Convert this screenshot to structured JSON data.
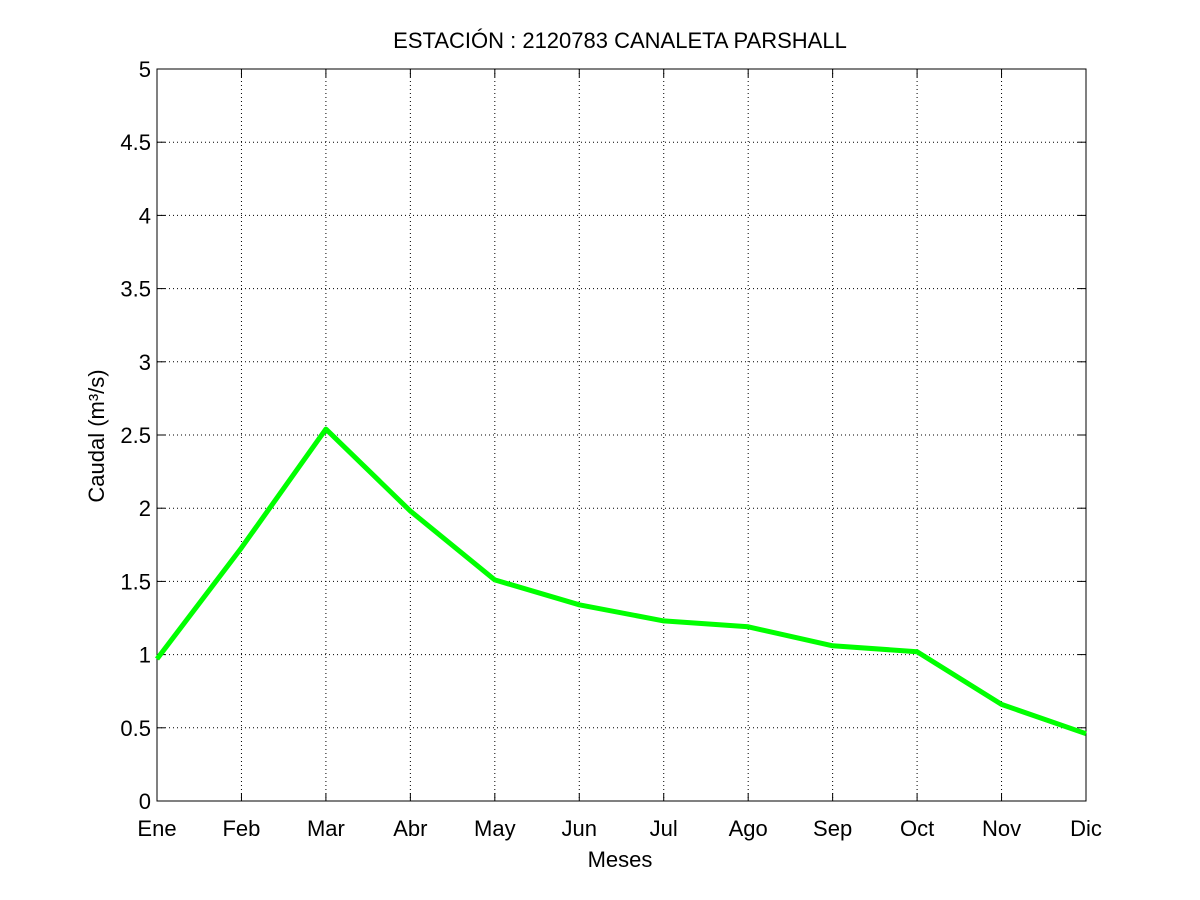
{
  "chart_data": {
    "type": "line",
    "title": "ESTACIÓN :  2120783  CANALETA PARSHALL",
    "xlabel": "Meses",
    "ylabel": "Caudal (m³/s)",
    "categories": [
      "Ene",
      "Feb",
      "Mar",
      "Abr",
      "May",
      "Jun",
      "Jul",
      "Ago",
      "Sep",
      "Oct",
      "Nov",
      "Dic"
    ],
    "series": [
      {
        "values": [
          0.97,
          1.73,
          2.54,
          1.98,
          1.51,
          1.34,
          1.23,
          1.19,
          1.06,
          1.02,
          0.66,
          0.46
        ],
        "color": "#00ff00"
      }
    ],
    "ylim": [
      0,
      5
    ],
    "yticks": [
      "0",
      "0.5",
      "1",
      "1.5",
      "2",
      "2.5",
      "3",
      "3.5",
      "4",
      "4.5",
      "5"
    ],
    "grid": true
  }
}
